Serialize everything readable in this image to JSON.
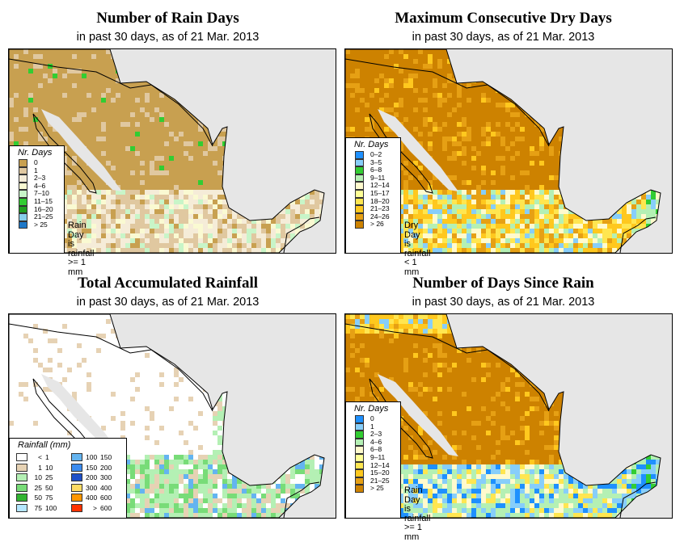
{
  "panels": [
    {
      "title": "Number of Rain Days",
      "subtitle": "in past 30 days, as of  21 Mar. 2013",
      "legend_title": "Nr. Days",
      "legend": [
        {
          "label": "0",
          "color": "#c8a050"
        },
        {
          "label": "1",
          "color": "#e0c8a0"
        },
        {
          "label": "2–3",
          "color": "#f5ecd8"
        },
        {
          "label": "4–6",
          "color": "#fafad2"
        },
        {
          "label": "7–10",
          "color": "#c8f5c8"
        },
        {
          "label": "11–15",
          "color": "#32cd32"
        },
        {
          "label": "16–20",
          "color": "#20a020"
        },
        {
          "label": "21–25",
          "color": "#87ceeb"
        },
        {
          "label": "> 25",
          "color": "#1e78c8"
        }
      ],
      "note": [
        "Rain Day",
        "is rainfall",
        ">= 1 mm"
      ]
    },
    {
      "title": "Maximum Consecutive Dry Days",
      "subtitle": "in past 30 days, as of  21 Mar. 2013",
      "legend_title": "Nr. Days",
      "legend": [
        {
          "label": "0–2",
          "color": "#1e90ff"
        },
        {
          "label": "3–5",
          "color": "#87cefa"
        },
        {
          "label": "6–8",
          "color": "#32cd32"
        },
        {
          "label": "9–11",
          "color": "#b4f0b4"
        },
        {
          "label": "12–14",
          "color": "#fffacd"
        },
        {
          "label": "15–17",
          "color": "#ffff96"
        },
        {
          "label": "18–20",
          "color": "#ffe650"
        },
        {
          "label": "21–23",
          "color": "#ffc81e"
        },
        {
          "label": "24–26",
          "color": "#e6a014"
        },
        {
          "label": "> 26",
          "color": "#cd8200"
        }
      ],
      "note": [
        "Dry Day",
        "is rainfall",
        "< 1 mm"
      ]
    },
    {
      "title": "Total Accumulated Rainfall",
      "subtitle": "in past 30 days, as of  21 Mar. 2013",
      "legend_title": "Rainfall (mm)",
      "legend_left": [
        {
          "from": "<",
          "to": "1",
          "color": "#ffffff"
        },
        {
          "from": "1",
          "to": "10",
          "color": "#e6d2b4"
        },
        {
          "from": "10",
          "to": "25",
          "color": "#b4f0b4"
        },
        {
          "from": "25",
          "to": "50",
          "color": "#78dc78"
        },
        {
          "from": "50",
          "to": "75",
          "color": "#32b432"
        },
        {
          "from": "75",
          "to": "100",
          "color": "#b4e6ff"
        }
      ],
      "legend_right": [
        {
          "from": "100",
          "to": "150",
          "color": "#64b4f0"
        },
        {
          "from": "150",
          "to": "200",
          "color": "#3c8cf0"
        },
        {
          "from": "200",
          "to": "300",
          "color": "#1e50c8"
        },
        {
          "from": "300",
          "to": "400",
          "color": "#ffdc64"
        },
        {
          "from": "400",
          "to": "600",
          "color": "#ff9600"
        },
        {
          "from": ">",
          "to": "600",
          "color": "#ff3200"
        }
      ]
    },
    {
      "title": "Number of Days Since Rain",
      "subtitle": "in past 30 days, as of  21 Mar. 2013",
      "legend_title": "Nr. Days",
      "legend": [
        {
          "label": "0",
          "color": "#1e90ff"
        },
        {
          "label": "1",
          "color": "#87cefa"
        },
        {
          "label": "2–3",
          "color": "#32cd32"
        },
        {
          "label": "4–6",
          "color": "#b4f0b4"
        },
        {
          "label": "6–8",
          "color": "#fffacd"
        },
        {
          "label": "9–11",
          "color": "#ffff96"
        },
        {
          "label": "12–14",
          "color": "#ffe650"
        },
        {
          "label": "15–20",
          "color": "#ffc81e"
        },
        {
          "label": "21–25",
          "color": "#e6a014"
        },
        {
          "label": "> 25",
          "color": "#cd8200"
        }
      ],
      "note": [
        "Rain Day",
        "is rainfall",
        ">= 1 mm"
      ]
    }
  ]
}
